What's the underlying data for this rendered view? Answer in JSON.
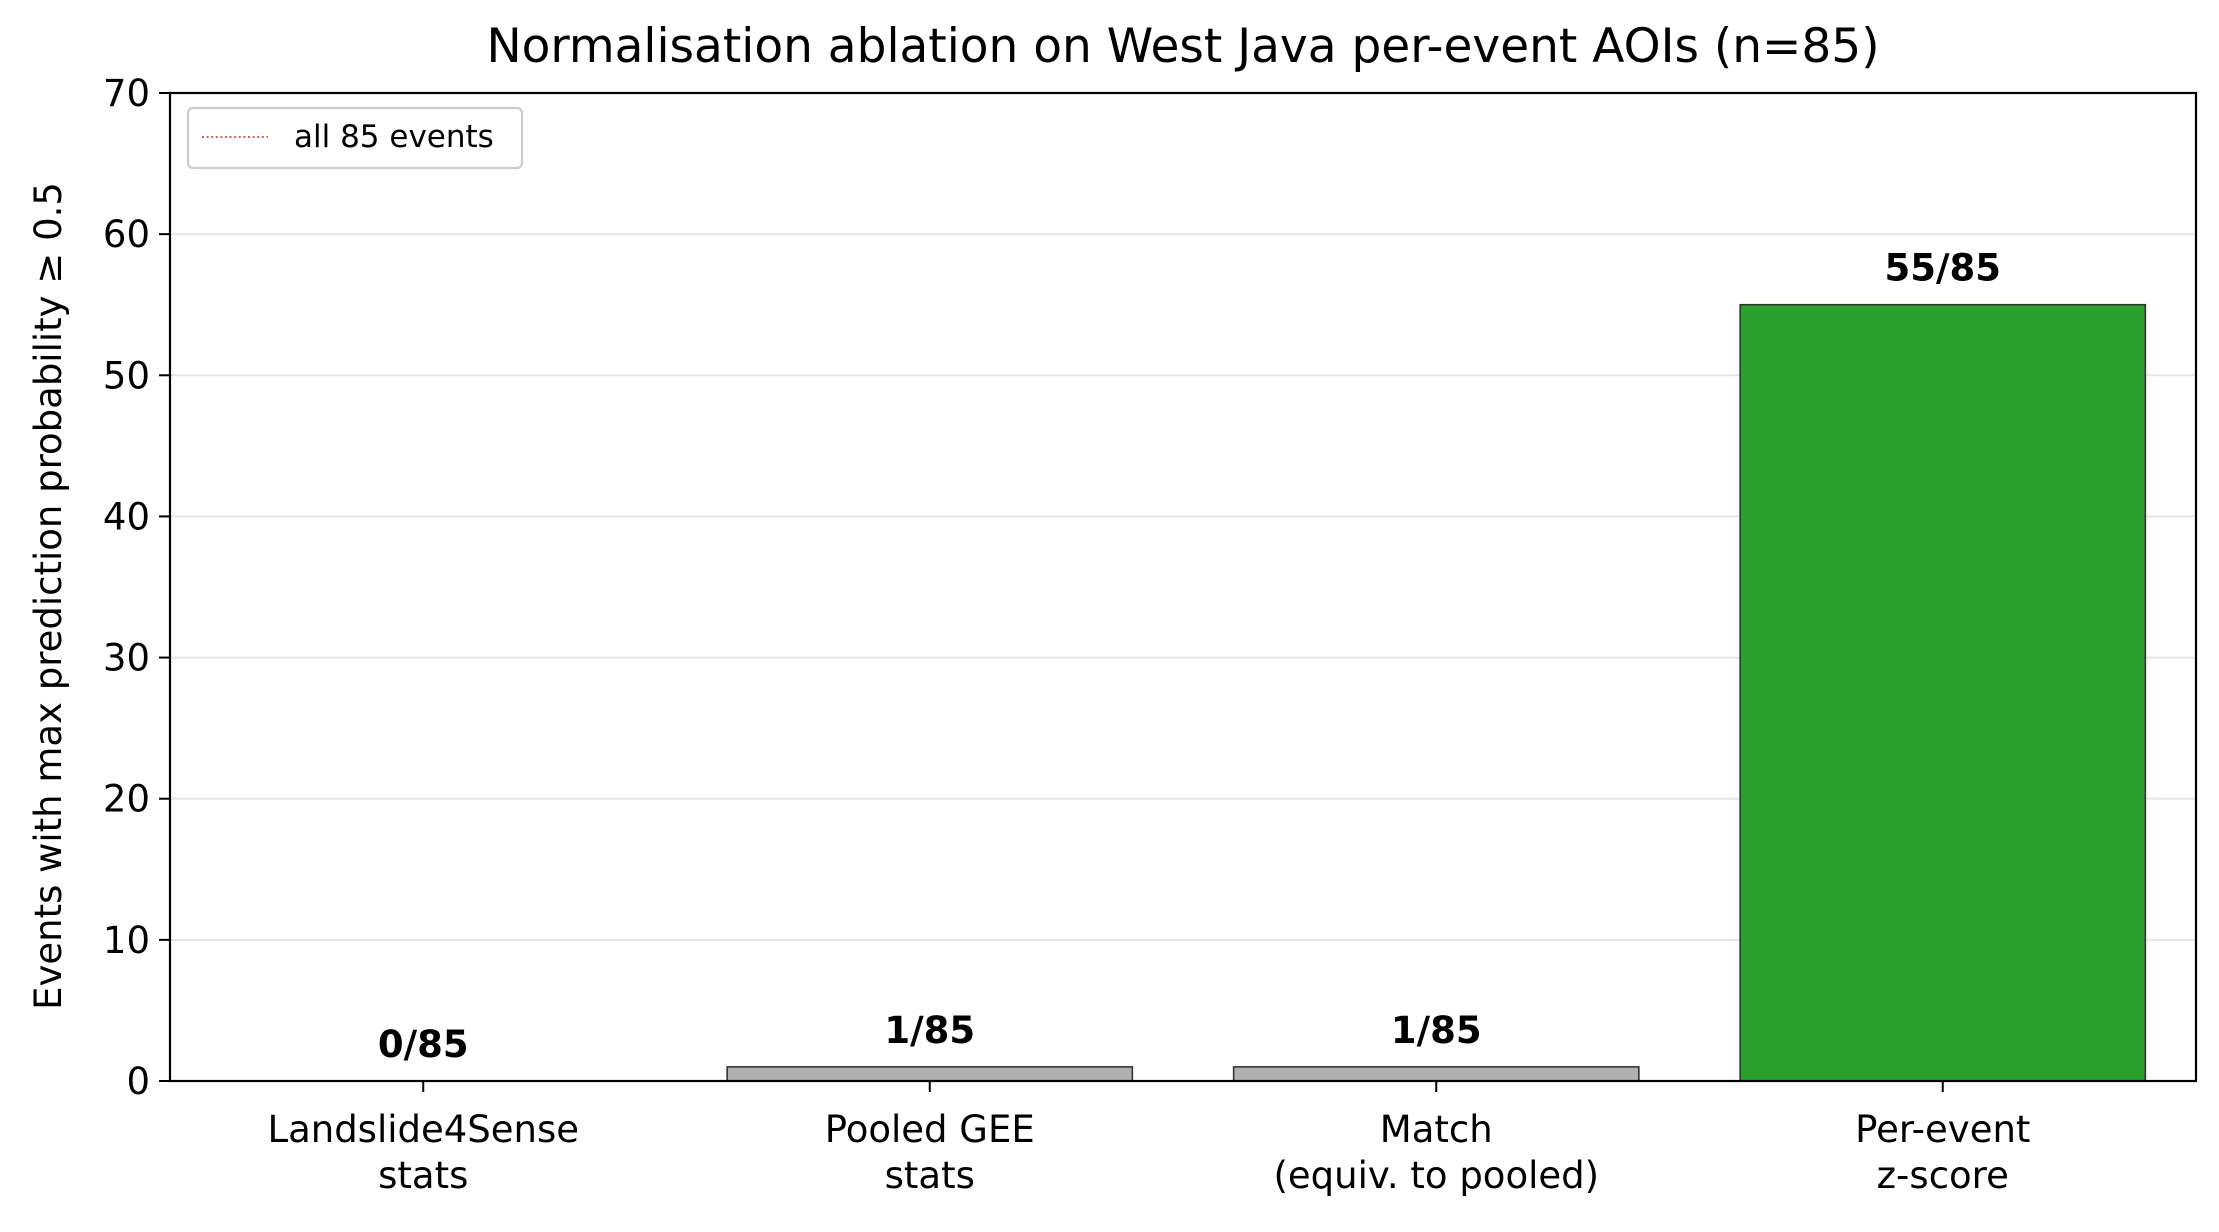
{
  "chart_data": {
    "type": "bar",
    "title": "Normalisation ablation on West Java per-event AOIs (n=85)",
    "xlabel": "",
    "ylabel": "Events with max prediction probability ≥ 0.5",
    "ylim": [
      0,
      70
    ],
    "yticks": [
      0,
      10,
      20,
      30,
      40,
      50,
      60,
      70
    ],
    "grid": "horizontal",
    "categories": [
      [
        "Landslide4Sense",
        "stats"
      ],
      [
        "Pooled GEE",
        "stats"
      ],
      [
        "Match",
        "(equiv. to pooled)"
      ],
      [
        "Per-event",
        "z-score"
      ]
    ],
    "values": [
      0,
      1,
      1,
      55
    ],
    "bar_labels": [
      "0/85",
      "1/85",
      "1/85",
      "55/85"
    ],
    "bar_colors": [
      "#b0b0b0",
      "#b0b0b0",
      "#b0b0b0",
      "#2ca02c"
    ],
    "reference_line": {
      "value": 85,
      "label": "all 85 events",
      "color": "#d62728",
      "style": "dotted"
    },
    "legend": {
      "placement": "top-left",
      "entries": [
        "all 85 events"
      ]
    }
  }
}
